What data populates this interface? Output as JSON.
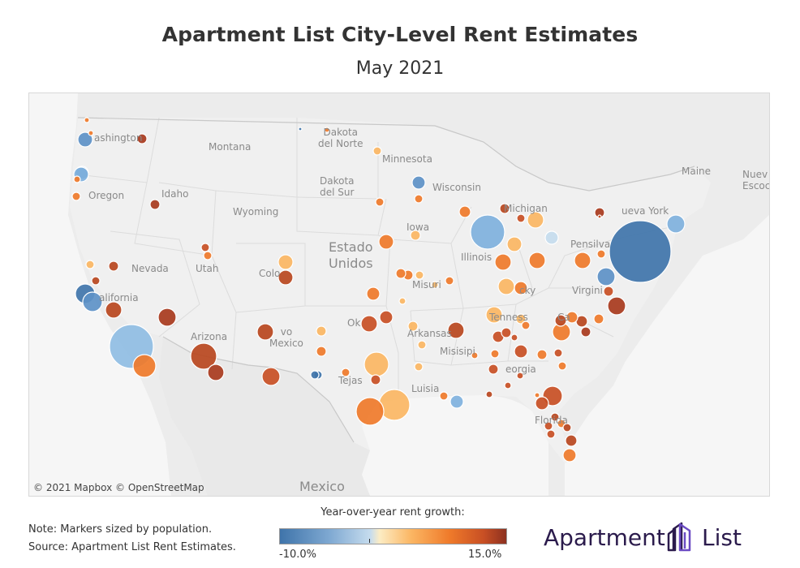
{
  "title": "Apartment List City-Level Rent Estimates",
  "subtitle": "May 2021",
  "map": {
    "labels": {
      "washington": "ashington",
      "montana": "Montana",
      "dakota_norte": "Dakota\ndel Norte",
      "minnesota": "Minnesota",
      "oregon": "Oregon",
      "idaho": "Idaho",
      "dakota_sur": "Dakota\ndel Sur",
      "wisconsin": "Wisconsin",
      "michigan": "Michigan",
      "wyoming": "Wyoming",
      "new_york": "ueva York",
      "maine": "Maine",
      "nueva_escocia": "Nuev\nEscoc",
      "iowa": "Iowa",
      "pensilvania": "Pensilva",
      "nevada": "Nevada",
      "utah": "Utah",
      "colorado": "Colo",
      "estados_unidos": "Estado\nUnidos",
      "illinois": "Illinois",
      "california": "alifornia",
      "misuri": "Misuri",
      "kentucky": "cky",
      "virginia": "Virgini",
      "arizona": "Arizona",
      "nuevo_mexico": "vo\nMexico",
      "oklahoma": "Ok",
      "tennessee": "Tenness",
      "carolina": "Ca",
      "arkansas": "Arkansas",
      "misisipi": "Misisipi",
      "georgia": "eorgia",
      "tejas": "Tejas",
      "luisiana": "Luisia",
      "florida": "Florida",
      "mexico": "Mexico"
    },
    "attribution": "© 2021 Mapbox  © OpenStreetMap"
  },
  "legend": {
    "title": "Year-over-year rent growth:",
    "min_label": "-10.0%",
    "max_label": "15.0%",
    "colors": [
      "#3f74aa",
      "#7fa9d2",
      "#c6dcee",
      "#fcecc4",
      "#fbb663",
      "#ef7a2a",
      "#c84f24",
      "#8d3120"
    ]
  },
  "notes": {
    "line1": "Note: Markers sized by population.",
    "line2": "Source: Apartment List Rent Estimates."
  },
  "logo": {
    "text_left": "Apartment",
    "text_right": "List",
    "brand_color": "#2b1b4c",
    "accent_color": "#6b4bc3"
  }
}
